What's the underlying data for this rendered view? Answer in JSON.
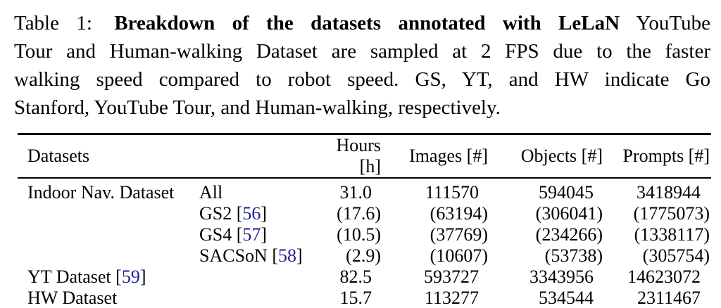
{
  "caption": {
    "line1": {
      "prefix": "Table 1:",
      "bold": "Breakdown of the datasets annotated with LeLaN",
      "suffix": "YouTube"
    },
    "line2": "Tour and Human-walking Dataset are sampled at 2 FPS due to the faster",
    "line3": "walking speed compared to robot speed.  GS, YT, and HW indicate Go",
    "line4": "Stanford, YouTube Tour, and Human-walking, respectively."
  },
  "table": {
    "citation_color": "#1f1f8f",
    "text_color": "#000000",
    "background_color": "#ffffff",
    "headers": {
      "datasets": "Datasets",
      "hours": "Hours [h]",
      "images": "Images [#]",
      "objects": "Objects [#]",
      "prompts": "Prompts [#]"
    },
    "rows": [
      {
        "group": {
          "pre": "Indoor Nav. Dataset",
          "cite": "",
          "post": ""
        },
        "subset": {
          "pre": "All",
          "cite": "",
          "post": ""
        },
        "hours": "31.0",
        "images": "111570",
        "objects": "594045",
        "prompts": "3418944"
      },
      {
        "group": {
          "pre": "",
          "cite": "",
          "post": ""
        },
        "subset": {
          "pre": "GS2 [",
          "cite": "56",
          "post": "]"
        },
        "hours": "(17.6)",
        "images": "(63194)",
        "objects": "(306041)",
        "prompts": "(1775073)"
      },
      {
        "group": {
          "pre": "",
          "cite": "",
          "post": ""
        },
        "subset": {
          "pre": "GS4 [",
          "cite": "57",
          "post": "]"
        },
        "hours": "(10.5)",
        "images": "(37769)",
        "objects": "(234266)",
        "prompts": "(1338117)"
      },
      {
        "group": {
          "pre": "",
          "cite": "",
          "post": ""
        },
        "subset": {
          "pre": "SACSoN [",
          "cite": "58",
          "post": "]"
        },
        "hours": "(2.9)",
        "images": "(10607)",
        "objects": "(53738)",
        "prompts": "(305754)"
      },
      {
        "group": {
          "pre": "YT Dataset [",
          "cite": "59",
          "post": "]"
        },
        "subset": {
          "pre": "",
          "cite": "",
          "post": ""
        },
        "hours": "82.5",
        "images": "593727",
        "objects": "3343956",
        "prompts": "14623072"
      },
      {
        "group": {
          "pre": "HW Dataset",
          "cite": "",
          "post": ""
        },
        "subset": {
          "pre": "",
          "cite": "",
          "post": ""
        },
        "hours": "15.7",
        "images": "113277",
        "objects": "534544",
        "prompts": "2311467"
      }
    ]
  }
}
